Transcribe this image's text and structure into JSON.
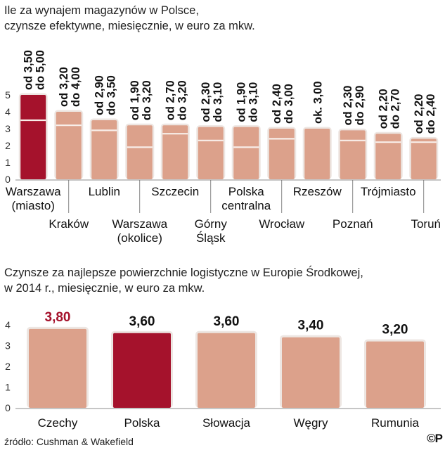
{
  "colors": {
    "bar": "#dca18b",
    "highlight": "#a5122c",
    "frame": "#ede6e2",
    "midline": "#f8eee9",
    "axis": "#666666",
    "highlight_label": "#a5122c",
    "label": "#111111"
  },
  "title1": {
    "line1": "Ile za wynajem magazynów w Polsce,",
    "line2": "czynsze efektywne, miesięcznie, w euro za mkw."
  },
  "title2": {
    "line1": "Czynsze za najlepsze powierzchnie logistyczne w Europie Środkowej,",
    "line2": "w 2014 r., miesięcznie, w euro za mkw."
  },
  "source": "źródło: Cushman & Wakefield",
  "logo": "©P",
  "chart_data": [
    {
      "type": "bar",
      "title": "Ile za wynajem magazynów w Polsce, czynsze efektywne, miesięcznie, w euro za mkw.",
      "ylim": [
        0,
        5
      ],
      "yticks": [
        "0",
        "1",
        "2",
        "3",
        "4",
        "5"
      ],
      "highlight_index": 0,
      "bars": [
        {
          "name": "Warszawa (miasto)",
          "label_lines": [
            "Warszawa",
            "(miasto)"
          ],
          "min": 3.5,
          "max": 5.0,
          "range_lines": [
            "od 3,50",
            "do 5,00"
          ]
        },
        {
          "name": "Kraków",
          "label_lines": [
            "Kraków"
          ],
          "min": 3.2,
          "max": 4.0,
          "range_lines": [
            "od 3,20",
            "do 4,00"
          ]
        },
        {
          "name": "Lublin",
          "label_lines": [
            "Lublin"
          ],
          "min": 2.9,
          "max": 3.5,
          "range_lines": [
            "od 2,90",
            "do 3,50"
          ]
        },
        {
          "name": "Warszawa (okolice)",
          "label_lines": [
            "Warszawa",
            "(okolice)"
          ],
          "min": 1.9,
          "max": 3.2,
          "range_lines": [
            "od 1,90",
            "do 3,20"
          ]
        },
        {
          "name": "Szczecin",
          "label_lines": [
            "Szczecin"
          ],
          "min": 2.7,
          "max": 3.2,
          "range_lines": [
            "od 2,70",
            "do 3,20"
          ]
        },
        {
          "name": "Górny Śląsk",
          "label_lines": [
            "Górny",
            "Śląsk"
          ],
          "min": 2.3,
          "max": 3.1,
          "range_lines": [
            "od 2,30",
            "do 3,10"
          ]
        },
        {
          "name": "Polska centralna",
          "label_lines": [
            "Polska",
            "centralna"
          ],
          "min": 1.9,
          "max": 3.1,
          "range_lines": [
            "od 1,90",
            "do 3,10"
          ]
        },
        {
          "name": "Wrocław",
          "label_lines": [
            "Wrocław"
          ],
          "min": 2.4,
          "max": 3.0,
          "range_lines": [
            "od 2,40",
            "do 3,00"
          ]
        },
        {
          "name": "Rzeszów",
          "label_lines": [
            "Rzeszów"
          ],
          "min": null,
          "max": 3.0,
          "range_lines": [
            "ok. 3,00"
          ]
        },
        {
          "name": "Poznań",
          "label_lines": [
            "Poznań"
          ],
          "min": 2.3,
          "max": 2.9,
          "range_lines": [
            "od 2,30",
            "do 2,90"
          ]
        },
        {
          "name": "Trójmiasto",
          "label_lines": [
            "Trójmiasto"
          ],
          "min": 2.2,
          "max": 2.7,
          "range_lines": [
            "od 2,20",
            "do 2,70"
          ]
        },
        {
          "name": "Toruń",
          "label_lines": [
            "Toruń"
          ],
          "min": 2.2,
          "max": 2.4,
          "range_lines": [
            "od 2,20",
            "do 2,40"
          ]
        }
      ]
    },
    {
      "type": "bar",
      "title": "Czynsze za najlepsze powierzchnie logistyczne w Europie Środkowej, w 2014 r., miesięcznie, w euro za mkw.",
      "ylim": [
        0,
        4
      ],
      "yticks": [
        "0",
        "1",
        "2",
        "3",
        "4"
      ],
      "highlight_index": 1,
      "label_highlight_index": 0,
      "categories": [
        "Czechy",
        "Polska",
        "Słowacja",
        "Węgry",
        "Rumunia"
      ],
      "values": [
        3.8,
        3.6,
        3.6,
        3.4,
        3.2
      ],
      "value_labels": [
        "3,80",
        "3,60",
        "3,60",
        "3,40",
        "3,20"
      ]
    }
  ]
}
